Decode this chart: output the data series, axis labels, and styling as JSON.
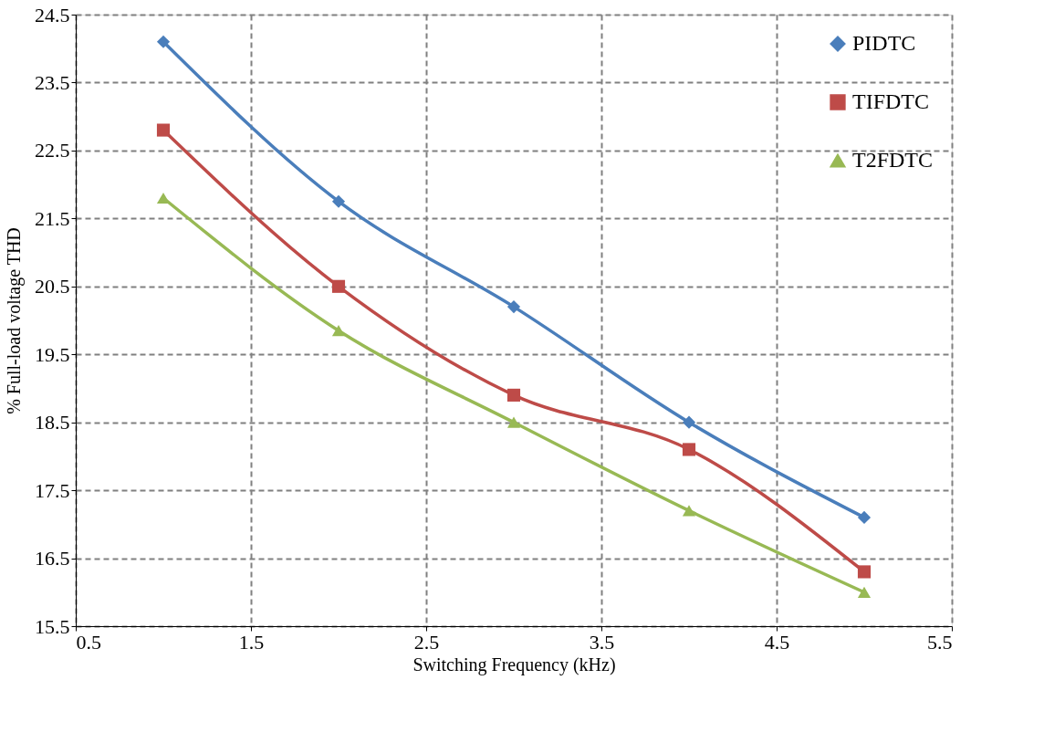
{
  "chart_data": {
    "type": "line",
    "xlabel": "Switching Frequency (kHz)",
    "ylabel": "% Full-load voltage THD",
    "x": [
      1,
      2,
      3,
      4,
      5
    ],
    "series": [
      {
        "name": "PIDTC",
        "color": "#4a7ebb",
        "marker": "diamond",
        "values": [
          24.1,
          21.75,
          20.2,
          18.5,
          17.1
        ]
      },
      {
        "name": "TIFDTC",
        "color": "#be4b48",
        "marker": "square",
        "values": [
          22.8,
          20.5,
          18.9,
          18.1,
          16.3
        ]
      },
      {
        "name": "T2FDTC",
        "color": "#98b954",
        "marker": "triangle",
        "values": [
          21.8,
          19.85,
          18.5,
          17.2,
          16.0
        ]
      }
    ],
    "xlim": [
      0.5,
      5.5
    ],
    "xticks": [
      0.5,
      1.5,
      2.5,
      3.5,
      4.5,
      5.5
    ],
    "ylim": [
      15.5,
      24.5
    ],
    "yticks": [
      15.5,
      16.5,
      17.5,
      18.5,
      19.5,
      20.5,
      21.5,
      22.5,
      23.5,
      24.5
    ],
    "grid": true,
    "legend": "top right",
    "line_style": "solid"
  }
}
